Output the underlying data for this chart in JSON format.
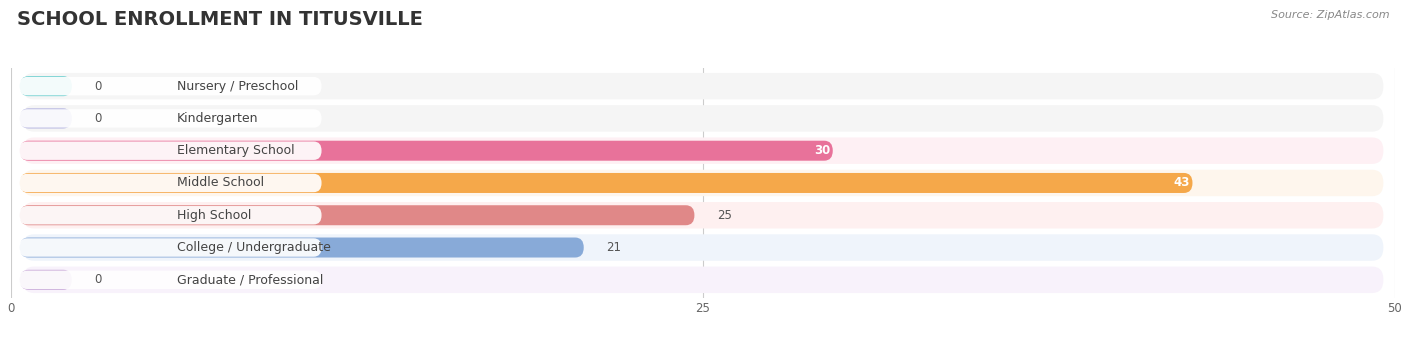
{
  "title": "SCHOOL ENROLLMENT IN TITUSVILLE",
  "source": "Source: ZipAtlas.com",
  "categories": [
    "Nursery / Preschool",
    "Kindergarten",
    "Elementary School",
    "Middle School",
    "High School",
    "College / Undergraduate",
    "Graduate / Professional"
  ],
  "values": [
    0,
    0,
    30,
    43,
    25,
    21,
    0
  ],
  "bar_colors": [
    "#6dcfcf",
    "#aaaadd",
    "#e8729a",
    "#f5a84a",
    "#e08888",
    "#88aad8",
    "#c8a8d8"
  ],
  "bar_bg_color": "#e8e8e8",
  "label_bg_color": "#ffffff",
  "row_bg_colors": [
    "#f5f5f5",
    "#f5f5f5",
    "#fef0f4",
    "#fef6ed",
    "#fef0f0",
    "#eff4fb",
    "#f8f2fb"
  ],
  "xlim": [
    0,
    50
  ],
  "xticks": [
    0,
    25,
    50
  ],
  "background_color": "#ffffff",
  "title_fontsize": 14,
  "label_fontsize": 9,
  "value_fontsize": 8.5,
  "source_fontsize": 8,
  "zero_stub": 2.5
}
